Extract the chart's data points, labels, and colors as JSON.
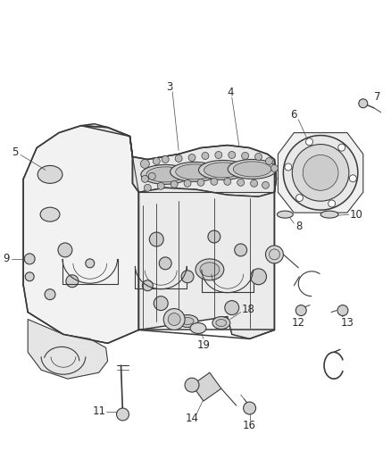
{
  "background_color": "#ffffff",
  "line_color": "#3a3a3a",
  "label_color": "#2a2a2a",
  "label_fontsize": 8.5,
  "fig_width": 4.38,
  "fig_height": 5.33,
  "dpi": 100
}
